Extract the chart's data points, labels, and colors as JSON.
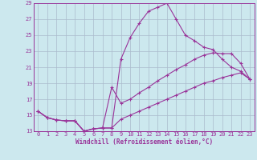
{
  "xlabel": "Windchill (Refroidissement éolien,°C)",
  "bg_color": "#cce8ee",
  "grid_color": "#aabbcc",
  "line_color": "#993399",
  "xlim": [
    -0.5,
    23.5
  ],
  "ylim": [
    13,
    29
  ],
  "xticks": [
    0,
    1,
    2,
    3,
    4,
    5,
    6,
    7,
    8,
    9,
    10,
    11,
    12,
    13,
    14,
    15,
    16,
    17,
    18,
    19,
    20,
    21,
    22,
    23
  ],
  "yticks": [
    13,
    15,
    17,
    19,
    21,
    23,
    25,
    27,
    29
  ],
  "line1_x": [
    0,
    1,
    2,
    3,
    4,
    5,
    6,
    7,
    8,
    9,
    10,
    11,
    12,
    13,
    14,
    15,
    16,
    17,
    18,
    19,
    20,
    21,
    22,
    23
  ],
  "line1_y": [
    15.5,
    14.7,
    14.4,
    14.3,
    14.3,
    13.0,
    13.3,
    13.4,
    13.4,
    22.0,
    24.7,
    26.5,
    28.0,
    28.5,
    29.0,
    27.0,
    25.0,
    24.3,
    23.5,
    23.2,
    22.0,
    21.0,
    20.5,
    19.5
  ],
  "line2_x": [
    0,
    1,
    2,
    3,
    4,
    5,
    6,
    7,
    8,
    9,
    10,
    11,
    12,
    13,
    14,
    15,
    16,
    17,
    18,
    19,
    20,
    21,
    22,
    23
  ],
  "line2_y": [
    15.5,
    14.7,
    14.4,
    14.3,
    14.3,
    13.0,
    13.3,
    13.4,
    18.5,
    16.5,
    17.0,
    17.8,
    18.5,
    19.3,
    20.0,
    20.7,
    21.3,
    22.0,
    22.5,
    22.8,
    22.7,
    22.7,
    21.5,
    19.5
  ],
  "line3_x": [
    0,
    1,
    2,
    3,
    4,
    5,
    6,
    7,
    8,
    9,
    10,
    11,
    12,
    13,
    14,
    15,
    16,
    17,
    18,
    19,
    20,
    21,
    22,
    23
  ],
  "line3_y": [
    15.5,
    14.7,
    14.4,
    14.3,
    14.3,
    13.0,
    13.3,
    13.4,
    13.4,
    14.5,
    15.0,
    15.5,
    16.0,
    16.5,
    17.0,
    17.5,
    18.0,
    18.5,
    19.0,
    19.3,
    19.7,
    20.0,
    20.3,
    19.5
  ]
}
